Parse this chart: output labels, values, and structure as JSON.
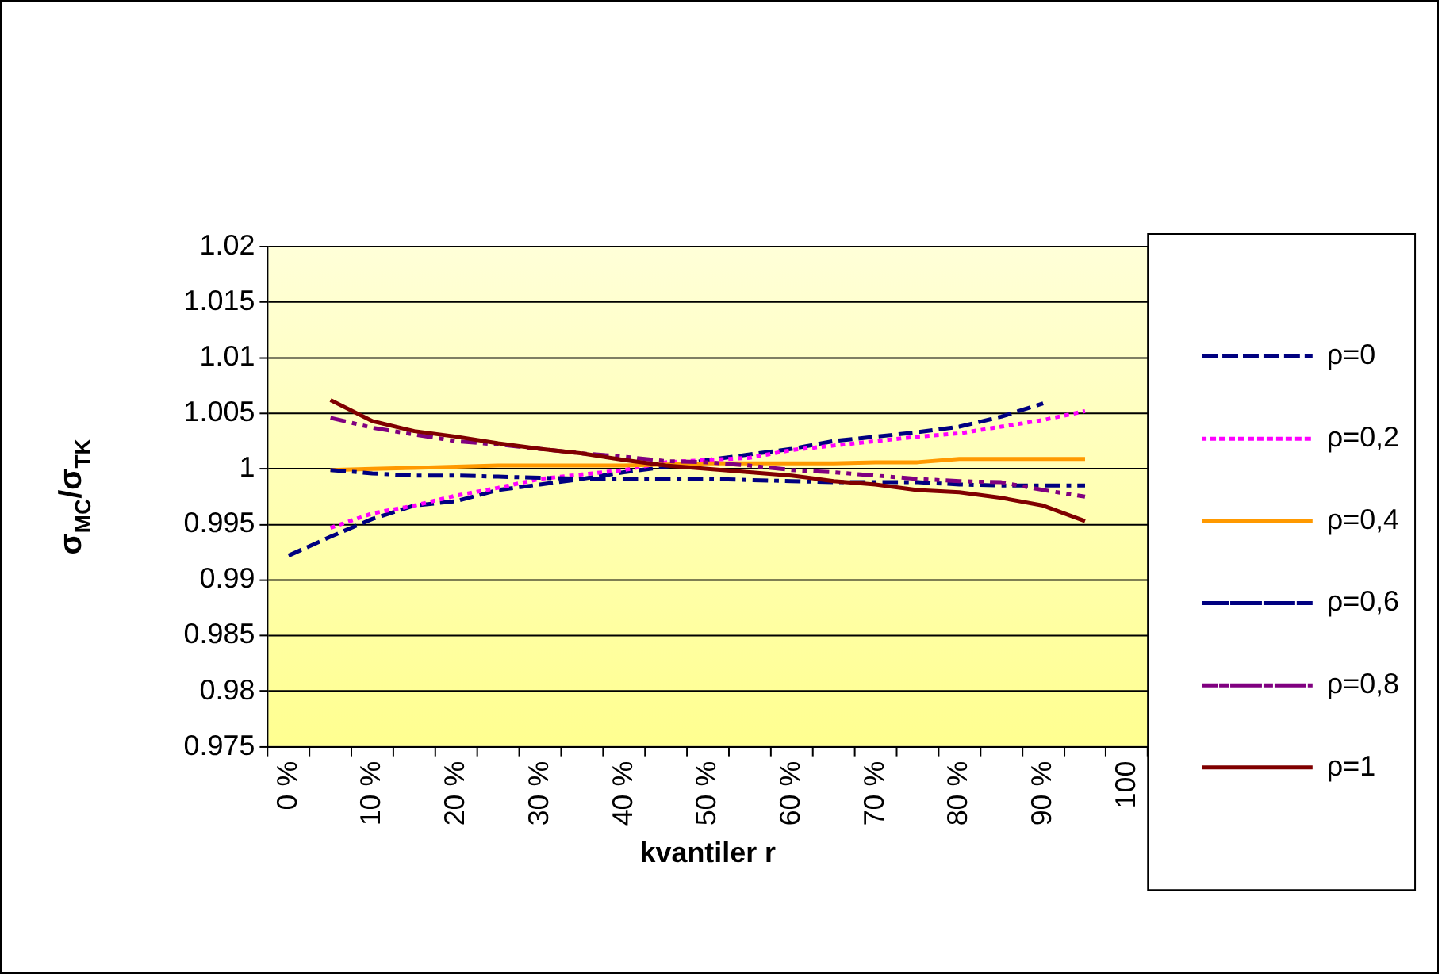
{
  "chart_data": {
    "type": "line",
    "xlabel": "kvantiler r",
    "ylabel": "σ$_{MC}$/σ$_{TK}$",
    "categories": [
      "0 %",
      null,
      "10 %",
      null,
      "20 %",
      null,
      "30 %",
      null,
      "40 %",
      null,
      "50 %",
      null,
      "60 %",
      null,
      "70 %",
      null,
      "80 %",
      null,
      "90 %",
      null,
      "100"
    ],
    "ylim": [
      0.975,
      1.02
    ],
    "yticks": [
      0.975,
      0.98,
      0.985,
      0.99,
      0.995,
      1,
      1.005,
      1.01,
      1.015,
      1.02
    ],
    "grid": "y",
    "legend": "right",
    "marker": "none",
    "series": [
      {
        "name": "ρ=0",
        "color": "#000080",
        "line_style": "dashed",
        "values": [
          0.9922,
          0.9939,
          0.9955,
          0.9967,
          0.9971,
          0.9981,
          0.9986,
          0.9991,
          0.9997,
          1.0002,
          1.0008,
          1.0013,
          1.0018,
          1.0025,
          1.0029,
          1.0033,
          1.0038,
          1.0047,
          1.0059,
          null,
          null
        ]
      },
      {
        "name": "ρ=0,2",
        "color": "#ff00ff",
        "line_style": "dotted",
        "values": [
          null,
          0.9947,
          0.996,
          0.9967,
          0.9976,
          0.9983,
          0.9991,
          0.9995,
          0.9999,
          1.0006,
          1.0008,
          1.001,
          1.0017,
          1.0021,
          1.0025,
          1.0029,
          1.0032,
          1.0038,
          1.0044,
          1.0052,
          null
        ]
      },
      {
        "name": "ρ=0,4",
        "color": "#ff9900",
        "line_style": "solid",
        "values": [
          null,
          0.9999,
          1.0,
          1.0001,
          1.0002,
          1.0003,
          1.0003,
          1.0003,
          1.0003,
          1.0004,
          1.0005,
          1.0005,
          1.0005,
          1.0005,
          1.0006,
          1.0006,
          1.0009,
          1.0009,
          1.0009,
          1.0009,
          null
        ]
      },
      {
        "name": "ρ=0,6",
        "color": "#000080",
        "line_style": "dashdot",
        "values": [
          null,
          0.9999,
          0.9996,
          0.9994,
          0.9994,
          0.9993,
          0.9992,
          0.9991,
          0.9991,
          0.9991,
          0.9991,
          0.999,
          0.9989,
          0.9988,
          0.9988,
          0.9988,
          0.9986,
          0.9985,
          0.9985,
          0.9985,
          null
        ]
      },
      {
        "name": "ρ=0,8",
        "color": "#800080",
        "line_style": "dashdotdot",
        "values": [
          null,
          1.0046,
          1.0037,
          1.0031,
          1.0025,
          1.0022,
          1.0018,
          1.0014,
          1.0011,
          1.0007,
          1.0006,
          1.0003,
          0.9999,
          0.9997,
          0.9994,
          0.9991,
          0.9989,
          0.9988,
          0.9981,
          0.9975,
          null
        ]
      },
      {
        "name": "ρ=1",
        "color": "#800000",
        "line_style": "solid",
        "values": [
          null,
          1.0062,
          1.0043,
          1.0034,
          1.0029,
          1.0023,
          1.0018,
          1.0014,
          1.0008,
          1.0003,
          1.0,
          0.9997,
          0.9994,
          0.9989,
          0.9986,
          0.9981,
          0.9979,
          0.9974,
          0.9967,
          0.9953,
          null
        ]
      }
    ]
  }
}
